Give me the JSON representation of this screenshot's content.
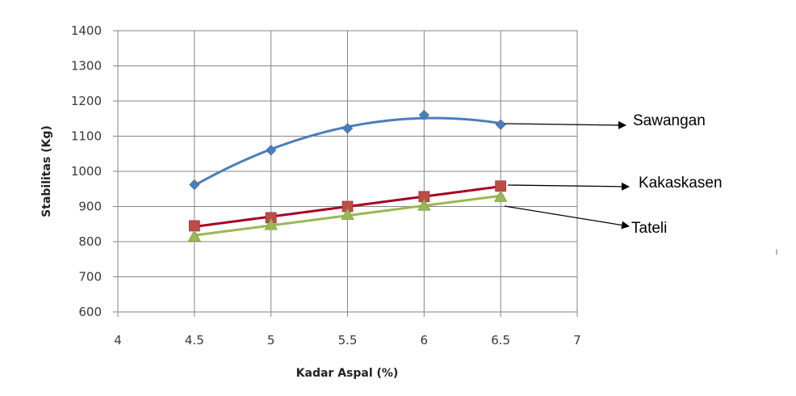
{
  "chart_data": {
    "type": "line",
    "xlabel": "Kadar Aspal (%)",
    "ylabel": "Stabilitas (Kg)",
    "xlim": [
      4,
      7
    ],
    "ylim": [
      600,
      1400
    ],
    "x_ticks": [
      "4",
      "4.5",
      "5",
      "5.5",
      "6",
      "6.5",
      "7"
    ],
    "y_ticks": [
      "600",
      "700",
      "800",
      "900",
      "1000",
      "1100",
      "1200",
      "1300",
      "1400"
    ],
    "grid": true,
    "legend": "callout labels with arrows on the right",
    "series": [
      {
        "name": "Sawangan",
        "marker": "diamond",
        "color": "#4a7ebb",
        "x": [
          4.5,
          5,
          5.5,
          6,
          6.5
        ],
        "y": [
          962,
          1060,
          1122,
          1160,
          1133
        ],
        "trend": "polynomial"
      },
      {
        "name": "Kakaskasen",
        "marker": "square",
        "color": "#be4b48",
        "line_color": "#a50021",
        "x": [
          4.5,
          5,
          5.5,
          6,
          6.5
        ],
        "y": [
          845,
          868,
          900,
          928,
          958
        ],
        "trend": "linear"
      },
      {
        "name": "Tateli",
        "marker": "triangle",
        "color": "#98b954",
        "x": [
          4.5,
          5,
          5.5,
          6,
          6.5
        ],
        "y": [
          815,
          848,
          877,
          903,
          928
        ],
        "trend": "linear"
      }
    ]
  }
}
